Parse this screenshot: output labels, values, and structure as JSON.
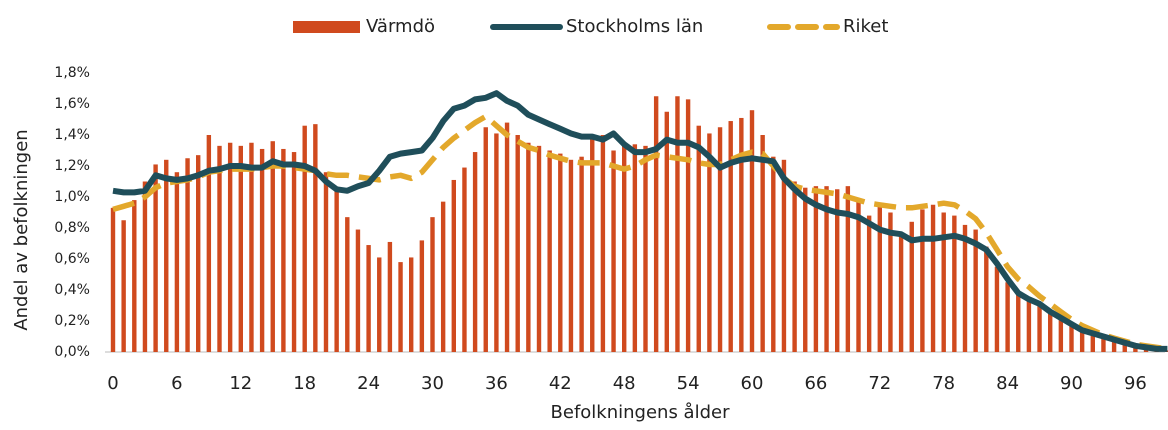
{
  "chart_data": {
    "type": "bar",
    "y_label": "Andel av befolkningen",
    "x_label": "Befolkningens ålder",
    "categories": [
      "0",
      null,
      null,
      null,
      null,
      null,
      "6",
      null,
      null,
      null,
      null,
      null,
      "12",
      null,
      null,
      null,
      null,
      null,
      "18",
      null,
      null,
      null,
      null,
      null,
      "24",
      null,
      null,
      null,
      null,
      null,
      "30",
      null,
      null,
      null,
      null,
      null,
      "36",
      null,
      null,
      null,
      null,
      null,
      "42",
      null,
      null,
      null,
      null,
      null,
      "48",
      null,
      null,
      null,
      null,
      null,
      "54",
      null,
      null,
      null,
      null,
      null,
      "60",
      null,
      null,
      null,
      null,
      null,
      "66",
      null,
      null,
      null,
      null,
      null,
      "72",
      null,
      null,
      null,
      null,
      null,
      "78",
      null,
      null,
      null,
      null,
      null,
      "84",
      null,
      null,
      null,
      null,
      null,
      "90",
      null,
      null,
      null,
      null,
      null,
      "96",
      null,
      null,
      null
    ],
    "series": [
      {
        "name": "Värmdö",
        "type": "bar",
        "color": "#d04a1e",
        "values": [
          0.93,
          0.85,
          0.98,
          1.1,
          1.21,
          1.24,
          1.16,
          1.25,
          1.27,
          1.4,
          1.33,
          1.35,
          1.33,
          1.35,
          1.31,
          1.36,
          1.31,
          1.29,
          1.46,
          1.47,
          1.16,
          1.05,
          0.87,
          0.79,
          0.69,
          0.61,
          0.71,
          0.58,
          0.61,
          0.72,
          0.87,
          0.97,
          1.11,
          1.19,
          1.29,
          1.45,
          1.41,
          1.48,
          1.4,
          1.35,
          1.33,
          1.3,
          1.28,
          1.24,
          1.26,
          1.38,
          1.4,
          1.3,
          1.34,
          1.34,
          1.33,
          1.65,
          1.55,
          1.65,
          1.63,
          1.46,
          1.41,
          1.45,
          1.49,
          1.51,
          1.56,
          1.4,
          1.26,
          1.24,
          1.1,
          1.06,
          1.07,
          1.07,
          1.05,
          1.07,
          0.97,
          0.88,
          0.94,
          0.9,
          0.76,
          0.84,
          0.92,
          0.95,
          0.9,
          0.88,
          0.82,
          0.79,
          0.68,
          0.55,
          0.45,
          0.39,
          0.35,
          0.3,
          0.26,
          0.21,
          0.17,
          0.14,
          0.11,
          0.09,
          0.07,
          0.05,
          0.04,
          0.03,
          0.02,
          0.01
        ]
      },
      {
        "name": "Stockholms län",
        "type": "line",
        "color": "#1f4e5a",
        "values": [
          1.04,
          1.03,
          1.03,
          1.04,
          1.14,
          1.12,
          1.11,
          1.12,
          1.14,
          1.17,
          1.18,
          1.2,
          1.2,
          1.19,
          1.19,
          1.23,
          1.21,
          1.21,
          1.2,
          1.17,
          1.1,
          1.05,
          1.04,
          1.07,
          1.09,
          1.17,
          1.26,
          1.28,
          1.29,
          1.3,
          1.38,
          1.49,
          1.57,
          1.59,
          1.63,
          1.64,
          1.67,
          1.62,
          1.59,
          1.53,
          1.5,
          1.47,
          1.44,
          1.41,
          1.39,
          1.39,
          1.37,
          1.41,
          1.34,
          1.29,
          1.29,
          1.31,
          1.37,
          1.35,
          1.35,
          1.32,
          1.26,
          1.19,
          1.22,
          1.24,
          1.25,
          1.24,
          1.23,
          1.12,
          1.05,
          0.99,
          0.95,
          0.92,
          0.9,
          0.89,
          0.87,
          0.83,
          0.79,
          0.77,
          0.76,
          0.72,
          0.73,
          0.73,
          0.74,
          0.75,
          0.73,
          0.7,
          0.66,
          0.57,
          0.47,
          0.38,
          0.34,
          0.31,
          0.26,
          0.22,
          0.18,
          0.14,
          0.12,
          0.1,
          0.08,
          0.06,
          0.04,
          0.03,
          0.02,
          0.02
        ]
      },
      {
        "name": "Riket",
        "type": "dashed-line",
        "color": "#e3a82b",
        "values": [
          0.92,
          0.94,
          0.96,
          1.0,
          1.06,
          1.09,
          1.1,
          1.11,
          1.13,
          1.16,
          1.17,
          1.18,
          1.18,
          1.18,
          1.19,
          1.2,
          1.2,
          1.19,
          1.18,
          1.17,
          1.15,
          1.14,
          1.14,
          1.13,
          1.12,
          1.11,
          1.13,
          1.14,
          1.12,
          1.16,
          1.24,
          1.32,
          1.38,
          1.43,
          1.48,
          1.52,
          1.46,
          1.4,
          1.36,
          1.32,
          1.3,
          1.27,
          1.25,
          1.23,
          1.22,
          1.22,
          1.22,
          1.2,
          1.18,
          1.2,
          1.24,
          1.27,
          1.26,
          1.25,
          1.24,
          1.22,
          1.21,
          1.21,
          1.24,
          1.27,
          1.29,
          1.28,
          1.2,
          1.12,
          1.07,
          1.05,
          1.04,
          1.03,
          1.02,
          1.0,
          0.98,
          0.96,
          0.95,
          0.94,
          0.93,
          0.93,
          0.94,
          0.95,
          0.96,
          0.95,
          0.91,
          0.86,
          0.77,
          0.66,
          0.55,
          0.47,
          0.42,
          0.36,
          0.31,
          0.26,
          0.21,
          0.17,
          0.14,
          0.11,
          0.09,
          0.07,
          0.05,
          0.04,
          0.03,
          0.02
        ]
      }
    ],
    "ylim": [
      0,
      1.8
    ],
    "yticks": [
      {
        "value": 0,
        "label": "0,0%"
      },
      {
        "value": 0.2,
        "label": "0,2%"
      },
      {
        "value": 0.4,
        "label": "0,4%"
      },
      {
        "value": 0.6,
        "label": "0,6%"
      },
      {
        "value": 0.8,
        "label": "0,8%"
      },
      {
        "value": 1.0,
        "label": "1,0%"
      },
      {
        "value": 1.2,
        "label": "1,2%"
      },
      {
        "value": 1.4,
        "label": "1,4%"
      },
      {
        "value": 1.6,
        "label": "1,6%"
      },
      {
        "value": 1.8,
        "label": "1,8%"
      }
    ],
    "grid": false,
    "legend": "top"
  }
}
